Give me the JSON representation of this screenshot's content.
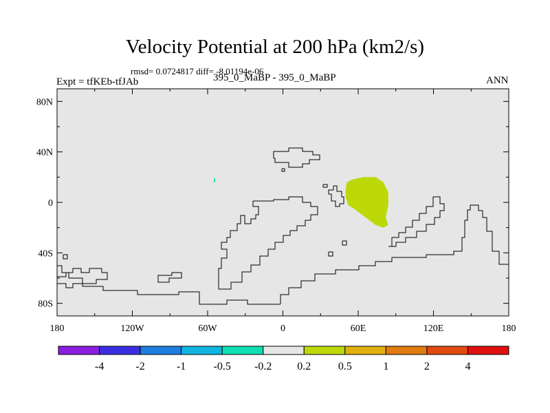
{
  "header": {
    "title": "Velocity Potential at 200 hPa (km2/s)",
    "stats": "rmsd= 0.0724817 diff= -8.01194e-06",
    "expt": "Expt = tfKEb-tfJAb",
    "case_id": "395_0_MaBP - 395_0_MaBP",
    "season": "ANN"
  },
  "chart_data": {
    "type": "heatmap",
    "title": "Velocity Potential at 200 hPa (km2/s)",
    "xlabel": "",
    "ylabel": "",
    "xlim": [
      -180,
      180
    ],
    "ylim": [
      -90,
      90
    ],
    "x_ticks": [
      {
        "value": -180,
        "label": "180"
      },
      {
        "value": -120,
        "label": "120W"
      },
      {
        "value": -60,
        "label": "60W"
      },
      {
        "value": 0,
        "label": "0"
      },
      {
        "value": 60,
        "label": "60E"
      },
      {
        "value": 120,
        "label": "120E"
      },
      {
        "value": 180,
        "label": "180"
      }
    ],
    "y_ticks": [
      {
        "value": 80,
        "label": "80N"
      },
      {
        "value": 40,
        "label": "40N"
      },
      {
        "value": 0,
        "label": "0"
      },
      {
        "value": -40,
        "label": "40S"
      },
      {
        "value": -80,
        "label": "80S"
      }
    ],
    "background_bin": "-0.2 to 0.2",
    "colorbar": {
      "colors": [
        "#8B1FE0",
        "#3A2FE0",
        "#1E7FE0",
        "#10B4E0",
        "#10DEB4",
        "#E6E6E6",
        "#BCD808",
        "#E0B010",
        "#E07B10",
        "#E04A10",
        "#E01010"
      ],
      "labels": [
        "-4",
        "-2",
        "-1",
        "-0.5",
        "-0.2",
        "0.2",
        "0.5",
        "1",
        "2",
        "4"
      ]
    },
    "regions": [
      {
        "name": "positive anomaly",
        "bin": "0.2 to 0.5",
        "color": "#BCD808",
        "points": [
          [
            51,
            16
          ],
          [
            55,
            18
          ],
          [
            64,
            20
          ],
          [
            74,
            20
          ],
          [
            80,
            16
          ],
          [
            84,
            8
          ],
          [
            84,
            -2
          ],
          [
            82,
            -12
          ],
          [
            84,
            -18
          ],
          [
            80,
            -20
          ],
          [
            74,
            -18
          ],
          [
            66,
            -12
          ],
          [
            58,
            -6
          ],
          [
            52,
            -2
          ],
          [
            50,
            4
          ],
          [
            50,
            10
          ]
        ]
      },
      {
        "name": "negative anomaly",
        "bin": "-0.5 to -0.2",
        "color": "#10DEB4",
        "points": [
          [
            -55,
            19
          ],
          [
            -54,
            19
          ],
          [
            -54,
            16
          ],
          [
            -55,
            16
          ]
        ]
      }
    ]
  }
}
